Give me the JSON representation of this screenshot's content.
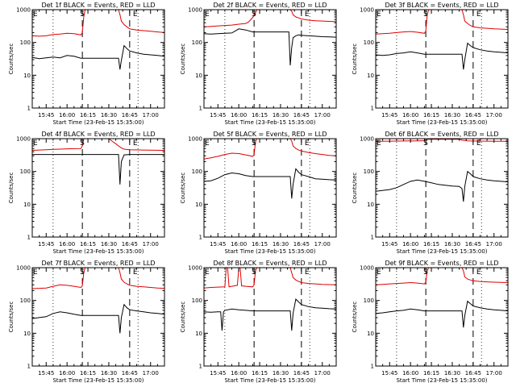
{
  "chart_data": {
    "type": "line",
    "grid": false,
    "y_scale": "log",
    "ylim": [
      1,
      1000
    ],
    "yticks": [
      "1",
      "10",
      "100",
      "1000"
    ],
    "xticks": [
      "15:45",
      "16:00",
      "16:15",
      "16:30",
      "16:45",
      "17:00"
    ],
    "xtick_values_min": [
      10,
      25,
      40,
      55,
      70,
      85
    ],
    "xlim_min": [
      0,
      95
    ],
    "ylabel": "Counts/sec",
    "xlabel": "Start Time (23-Feb-15 15:35:00)",
    "colors": {
      "events": "#000000",
      "lld": "#e00000"
    },
    "markers": {
      "E_min": 0,
      "S_min": 36,
      "E2_min": 70,
      "dotted_min": [
        15,
        76
      ]
    },
    "panels": [
      {
        "title": "Det 1f BLACK = Events, RED = LLD",
        "series": [
          {
            "key": "events",
            "x": [
              0,
              5,
              10,
              15,
              20,
              25,
              30,
              35,
              36,
              37,
              38,
              40,
              50,
              60,
              62,
              63,
              64,
              66,
              68,
              70,
              75,
              80,
              85,
              90,
              95
            ],
            "y": [
              35,
              32,
              34,
              36,
              34,
              40,
              38,
              33,
              33,
              33,
              33,
              33,
              33,
              33,
              33,
              15,
              28,
              80,
              65,
              55,
              48,
              44,
              42,
              40,
              38
            ]
          },
          {
            "key": "lld",
            "x": [
              0,
              5,
              10,
              15,
              20,
              25,
              30,
              35,
              36,
              37,
              38,
              40,
              50,
              60,
              62,
              63,
              64,
              66,
              68,
              70,
              75,
              80,
              85,
              90,
              95
            ],
            "y": [
              160,
              155,
              160,
              175,
              180,
              190,
              185,
              170,
              200,
              600,
              1100,
              1100,
              1100,
              1100,
              1100,
              700,
              450,
              350,
              300,
              260,
              240,
              230,
              220,
              210,
              200
            ]
          }
        ]
      },
      {
        "title": "Det 2f BLACK = Events, RED = LLD",
        "series": [
          {
            "key": "events",
            "x": [
              0,
              5,
              10,
              15,
              20,
              25,
              30,
              35,
              36,
              37,
              38,
              40,
              50,
              60,
              61,
              62,
              63,
              64,
              66,
              68,
              70,
              75,
              80,
              85,
              90,
              95
            ],
            "y": [
              185,
              180,
              185,
              190,
              195,
              260,
              240,
              210,
              210,
              210,
              210,
              210,
              210,
              210,
              210,
              20,
              70,
              140,
              160,
              170,
              165,
              160,
              155,
              150,
              148,
              145
            ]
          },
          {
            "key": "lld",
            "x": [
              0,
              5,
              10,
              15,
              20,
              25,
              30,
              32,
              34,
              36,
              38,
              40,
              45,
              50,
              55,
              58,
              60,
              62,
              63,
              64,
              66,
              68,
              70,
              75,
              80,
              85,
              90,
              95
            ],
            "y": [
              300,
              310,
              320,
              330,
              340,
              360,
              380,
              420,
              520,
              650,
              1100,
              1100,
              1100,
              1100,
              1100,
              1100,
              1100,
              1100,
              900,
              700,
              600,
              560,
              520,
              480,
              460,
              450,
              440,
              430
            ]
          }
        ]
      },
      {
        "title": "Det 3f BLACK = Events, RED = LLD",
        "series": [
          {
            "key": "events",
            "x": [
              0,
              5,
              10,
              15,
              20,
              25,
              30,
              35,
              36,
              37,
              38,
              40,
              50,
              60,
              62,
              63,
              64,
              66,
              68,
              70,
              75,
              80,
              85,
              90,
              95
            ],
            "y": [
              42,
              40,
              42,
              46,
              48,
              52,
              48,
              44,
              44,
              44,
              44,
              44,
              44,
              44,
              44,
              15,
              30,
              95,
              80,
              70,
              60,
              55,
              52,
              50,
              48
            ]
          },
          {
            "key": "lld",
            "x": [
              0,
              5,
              10,
              15,
              20,
              25,
              30,
              35,
              36,
              37,
              38,
              40,
              50,
              60,
              62,
              63,
              64,
              66,
              68,
              70,
              75,
              80,
              85,
              90,
              95
            ],
            "y": [
              180,
              185,
              190,
              200,
              210,
              215,
              205,
              190,
              220,
              700,
              1100,
              1100,
              1100,
              1100,
              1100,
              700,
              450,
              380,
              330,
              300,
              280,
              270,
              260,
              255,
              250
            ]
          }
        ]
      },
      {
        "title": "Det 4f BLACK = Events, RED = LLD",
        "series": [
          {
            "key": "events",
            "x": [
              0,
              10,
              20,
              30,
              35,
              36,
              37,
              38,
              40,
              50,
              60,
              62,
              63,
              64,
              66,
              70,
              80,
              95
            ],
            "y": [
              330,
              330,
              330,
              330,
              330,
              330,
              330,
              330,
              330,
              330,
              330,
              330,
              40,
              200,
              320,
              330,
              330,
              330
            ]
          },
          {
            "key": "lld",
            "x": [
              0,
              5,
              10,
              15,
              20,
              25,
              30,
              35,
              36,
              37,
              38,
              40,
              50,
              55,
              58,
              60,
              62,
              63,
              64,
              66,
              70,
              80,
              95
            ],
            "y": [
              440,
              450,
              460,
              470,
              480,
              490,
              495,
              500,
              600,
              1000,
              1100,
              1100,
              1100,
              1100,
              800,
              700,
              600,
              560,
              520,
              480,
              460,
              450,
              440
            ]
          }
        ]
      },
      {
        "title": "Det 5f BLACK = Events, RED = LLD",
        "series": [
          {
            "key": "events",
            "x": [
              0,
              5,
              10,
              15,
              20,
              25,
              30,
              35,
              36,
              37,
              38,
              40,
              50,
              60,
              62,
              63,
              64,
              66,
              68,
              70,
              75,
              80,
              85,
              90,
              95
            ],
            "y": [
              50,
              52,
              62,
              80,
              90,
              85,
              75,
              70,
              70,
              70,
              70,
              70,
              70,
              70,
              70,
              15,
              40,
              120,
              95,
              80,
              70,
              60,
              58,
              56,
              55
            ]
          },
          {
            "key": "lld",
            "x": [
              0,
              5,
              10,
              15,
              20,
              25,
              30,
              35,
              36,
              37,
              38,
              40,
              50,
              60,
              62,
              63,
              64,
              66,
              68,
              70,
              75,
              80,
              85,
              90,
              95
            ],
            "y": [
              240,
              260,
              290,
              330,
              360,
              350,
              320,
              290,
              320,
              800,
              1100,
              1100,
              1100,
              1100,
              1100,
              850,
              600,
              500,
              450,
              420,
              380,
              350,
              330,
              310,
              300
            ]
          }
        ]
      },
      {
        "title": "Det 6f BLACK = Events, RED = LLD",
        "series": [
          {
            "key": "events",
            "x": [
              0,
              10,
              15,
              20,
              25,
              30,
              35,
              40,
              45,
              50,
              55,
              60,
              62,
              63,
              64,
              66,
              68,
              70,
              75,
              80,
              85,
              90,
              95
            ],
            "y": [
              25,
              28,
              32,
              40,
              50,
              55,
              50,
              45,
              40,
              38,
              36,
              35,
              30,
              12,
              35,
              100,
              85,
              70,
              60,
              55,
              52,
              50,
              48
            ]
          },
          {
            "key": "lld",
            "x": [
              0,
              10,
              20,
              30,
              35,
              36,
              38,
              40,
              50,
              60,
              62,
              64,
              66,
              70,
              80,
              95
            ],
            "y": [
              830,
              840,
              850,
              860,
              870,
              900,
              960,
              960,
              960,
              960,
              900,
              880,
              860,
              850,
              840,
              830
            ]
          }
        ]
      },
      {
        "title": "Det 7f BLACK = Events, RED = LLD",
        "series": [
          {
            "key": "events",
            "x": [
              0,
              5,
              10,
              15,
              20,
              25,
              30,
              35,
              36,
              37,
              38,
              40,
              50,
              60,
              62,
              63,
              64,
              66,
              68,
              70,
              75,
              80,
              85,
              90,
              95
            ],
            "y": [
              28,
              30,
              32,
              40,
              45,
              42,
              38,
              35,
              35,
              35,
              35,
              35,
              35,
              35,
              35,
              10,
              30,
              75,
              60,
              52,
              48,
              45,
              42,
              40,
              38
            ]
          },
          {
            "key": "lld",
            "x": [
              0,
              5,
              10,
              15,
              20,
              25,
              30,
              35,
              36,
              37,
              38,
              40,
              50,
              60,
              62,
              63,
              64,
              66,
              68,
              70,
              75,
              80,
              85,
              90,
              95
            ],
            "y": [
              230,
              235,
              240,
              270,
              300,
              290,
              270,
              250,
              280,
              700,
              1100,
              1100,
              1100,
              1100,
              1100,
              700,
              450,
              360,
              320,
              290,
              270,
              260,
              250,
              240,
              235
            ]
          }
        ]
      },
      {
        "title": "Det 8f BLACK = Events, RED = LLD",
        "series": [
          {
            "key": "events",
            "x": [
              0,
              5,
              10,
              12,
              13,
              14,
              15,
              20,
              25,
              30,
              35,
              36,
              37,
              38,
              40,
              50,
              60,
              62,
              63,
              64,
              66,
              68,
              70,
              75,
              80,
              85,
              90,
              95
            ],
            "y": [
              45,
              44,
              45,
              45,
              12,
              45,
              50,
              55,
              52,
              50,
              48,
              48,
              48,
              48,
              48,
              48,
              48,
              48,
              12,
              40,
              110,
              90,
              75,
              65,
              60,
              58,
              56,
              55
            ]
          },
          {
            "key": "lld",
            "x": [
              0,
              5,
              10,
              15,
              16,
              17,
              18,
              20,
              24,
              25,
              26,
              27,
              30,
              35,
              36,
              37,
              38,
              40,
              50,
              60,
              62,
              63,
              64,
              66,
              68,
              70,
              75,
              80,
              85,
              90,
              95
            ],
            "y": [
              240,
              250,
              255,
              260,
              1100,
              1100,
              260,
              270,
              290,
              1100,
              1100,
              280,
              270,
              260,
              300,
              800,
              1100,
              1100,
              1100,
              1100,
              1100,
              700,
              500,
              420,
              380,
              350,
              330,
              320,
              310,
              305,
              300
            ]
          }
        ]
      },
      {
        "title": "Det 9f BLACK = Events, RED = LLD",
        "series": [
          {
            "key": "events",
            "x": [
              0,
              5,
              10,
              15,
              20,
              25,
              30,
              35,
              36,
              37,
              38,
              40,
              50,
              60,
              62,
              63,
              64,
              66,
              68,
              70,
              75,
              80,
              85,
              90,
              95
            ],
            "y": [
              40,
              42,
              45,
              48,
              50,
              55,
              52,
              48,
              48,
              48,
              48,
              48,
              48,
              48,
              48,
              15,
              35,
              95,
              80,
              68,
              60,
              55,
              52,
              50,
              48
            ]
          },
          {
            "key": "lld",
            "x": [
              0,
              5,
              10,
              15,
              20,
              25,
              30,
              35,
              36,
              37,
              38,
              40,
              50,
              60,
              62,
              63,
              64,
              66,
              68,
              70,
              75,
              80,
              85,
              90,
              95
            ],
            "y": [
              300,
              310,
              320,
              330,
              340,
              350,
              340,
              320,
              360,
              800,
              1100,
              1100,
              1100,
              1100,
              1100,
              800,
              520,
              450,
              420,
              400,
              380,
              370,
              360,
              355,
              350
            ]
          }
        ]
      }
    ]
  }
}
